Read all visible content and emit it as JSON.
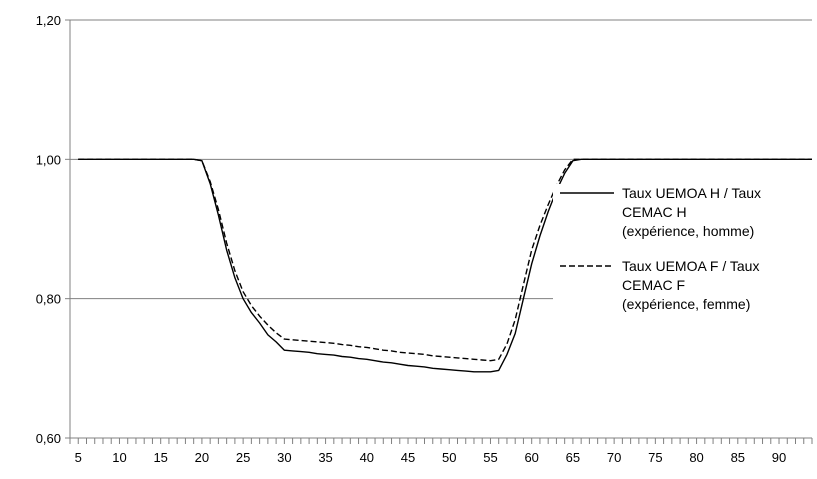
{
  "chart_data": {
    "type": "line",
    "title": "",
    "xlabel": "",
    "ylabel": "",
    "xlim": [
      4,
      94
    ],
    "ylim": [
      0.6,
      1.2
    ],
    "x_tick_labels": [
      "5",
      "10",
      "15",
      "20",
      "25",
      "30",
      "35",
      "40",
      "45",
      "50",
      "55",
      "60",
      "65",
      "70",
      "75",
      "80",
      "85",
      "90"
    ],
    "y_tick_labels": [
      "0,60",
      "0,80",
      "1,00",
      "1,20"
    ],
    "y_ticks": [
      0.6,
      0.8,
      1.0,
      1.2
    ],
    "grid": "horizontal",
    "legend_position": "right",
    "x": [
      5,
      6,
      7,
      8,
      9,
      10,
      11,
      12,
      13,
      14,
      15,
      16,
      17,
      18,
      19,
      20,
      21,
      22,
      23,
      24,
      25,
      26,
      27,
      28,
      29,
      30,
      31,
      32,
      33,
      34,
      35,
      36,
      37,
      38,
      39,
      40,
      41,
      42,
      43,
      44,
      45,
      46,
      47,
      48,
      49,
      50,
      51,
      52,
      53,
      54,
      55,
      56,
      57,
      58,
      59,
      60,
      61,
      62,
      63,
      64,
      65,
      66,
      67,
      68,
      69,
      70,
      71,
      72,
      73,
      74,
      75,
      76,
      77,
      78,
      79,
      80,
      81,
      82,
      83,
      84,
      85,
      86,
      87,
      88,
      89,
      90,
      91,
      92,
      93,
      94
    ],
    "series": [
      {
        "name": "Taux UEMOA H / Taux CEMAC H (expérience, homme)",
        "legend_lines": [
          "Taux UEMOA H / Taux",
          "CEMAC H",
          "(expérience, homme)"
        ],
        "style": "solid",
        "color": "#000000",
        "values": [
          1,
          1,
          1,
          1,
          1,
          1,
          1,
          1,
          1,
          1,
          1,
          1,
          1,
          1,
          1,
          0.998,
          0.965,
          0.92,
          0.87,
          0.83,
          0.8,
          0.78,
          0.765,
          0.748,
          0.738,
          0.726,
          0.725,
          0.724,
          0.723,
          0.721,
          0.72,
          0.719,
          0.717,
          0.716,
          0.714,
          0.713,
          0.711,
          0.709,
          0.708,
          0.706,
          0.704,
          0.703,
          0.702,
          0.7,
          0.699,
          0.698,
          0.697,
          0.696,
          0.695,
          0.695,
          0.695,
          0.697,
          0.72,
          0.75,
          0.8,
          0.85,
          0.89,
          0.925,
          0.955,
          0.98,
          0.998,
          1,
          1,
          1,
          1,
          1,
          1,
          1,
          1,
          1,
          1,
          1,
          1,
          1,
          1,
          1,
          1,
          1,
          1,
          1,
          1,
          1,
          1,
          1,
          1,
          1,
          1,
          1,
          1,
          1
        ]
      },
      {
        "name": "Taux UEMOA F / Taux CEMAC F (expérience, femme)",
        "legend_lines": [
          "Taux UEMOA F / Taux",
          "CEMAC F",
          "(expérience, femme)"
        ],
        "style": "dashed",
        "color": "#000000",
        "values": [
          1,
          1,
          1,
          1,
          1,
          1,
          1,
          1,
          1,
          1,
          1,
          1,
          1,
          1,
          1,
          0.998,
          0.968,
          0.928,
          0.88,
          0.84,
          0.81,
          0.79,
          0.775,
          0.762,
          0.751,
          0.742,
          0.741,
          0.74,
          0.739,
          0.738,
          0.737,
          0.736,
          0.734,
          0.733,
          0.731,
          0.73,
          0.728,
          0.726,
          0.725,
          0.723,
          0.722,
          0.721,
          0.72,
          0.718,
          0.717,
          0.716,
          0.715,
          0.714,
          0.713,
          0.712,
          0.711,
          0.713,
          0.735,
          0.77,
          0.82,
          0.87,
          0.905,
          0.935,
          0.962,
          0.985,
          1,
          1,
          1,
          1,
          1,
          1,
          1,
          1,
          1,
          1,
          1,
          1,
          1,
          1,
          1,
          1,
          1,
          1,
          1,
          1,
          1,
          1,
          1,
          1,
          1,
          1,
          1,
          1,
          1,
          1
        ]
      }
    ]
  }
}
